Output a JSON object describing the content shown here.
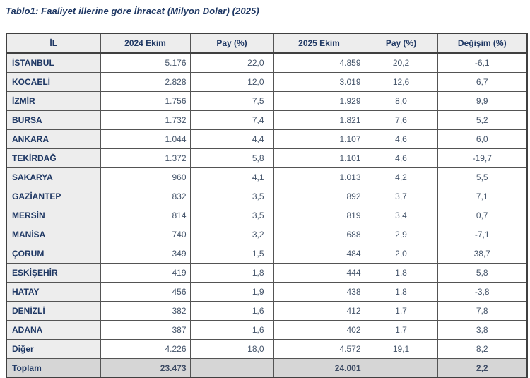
{
  "title": "Tablo1: Faaliyet illerine göre İhracat (Milyon Dolar) (2025)",
  "table": {
    "columns": [
      "İL",
      "2024 Ekim",
      "Pay  (%)",
      "2025 Ekim",
      "Pay  (%)",
      "Değişim (%)"
    ],
    "rows": [
      {
        "il": "İSTANBUL",
        "ekim2024": "5.176",
        "pay2024": "22,0",
        "ekim2025": "4.859",
        "pay2025": "20,2",
        "degisim": "-6,1"
      },
      {
        "il": "KOCAELİ",
        "ekim2024": "2.828",
        "pay2024": "12,0",
        "ekim2025": "3.019",
        "pay2025": "12,6",
        "degisim": "6,7"
      },
      {
        "il": "İZMİR",
        "ekim2024": "1.756",
        "pay2024": "7,5",
        "ekim2025": "1.929",
        "pay2025": "8,0",
        "degisim": "9,9"
      },
      {
        "il": "BURSA",
        "ekim2024": "1.732",
        "pay2024": "7,4",
        "ekim2025": "1.821",
        "pay2025": "7,6",
        "degisim": "5,2"
      },
      {
        "il": "ANKARA",
        "ekim2024": "1.044",
        "pay2024": "4,4",
        "ekim2025": "1.107",
        "pay2025": "4,6",
        "degisim": "6,0"
      },
      {
        "il": "TEKİRDAĞ",
        "ekim2024": "1.372",
        "pay2024": "5,8",
        "ekim2025": "1.101",
        "pay2025": "4,6",
        "degisim": "-19,7"
      },
      {
        "il": "SAKARYA",
        "ekim2024": "960",
        "pay2024": "4,1",
        "ekim2025": "1.013",
        "pay2025": "4,2",
        "degisim": "5,5"
      },
      {
        "il": "GAZİANTEP",
        "ekim2024": "832",
        "pay2024": "3,5",
        "ekim2025": "892",
        "pay2025": "3,7",
        "degisim": "7,1"
      },
      {
        "il": "MERSİN",
        "ekim2024": "814",
        "pay2024": "3,5",
        "ekim2025": "819",
        "pay2025": "3,4",
        "degisim": "0,7"
      },
      {
        "il": "MANİSA",
        "ekim2024": "740",
        "pay2024": "3,2",
        "ekim2025": "688",
        "pay2025": "2,9",
        "degisim": "-7,1"
      },
      {
        "il": "ÇORUM",
        "ekim2024": "349",
        "pay2024": "1,5",
        "ekim2025": "484",
        "pay2025": "2,0",
        "degisim": "38,7"
      },
      {
        "il": "ESKİŞEHİR",
        "ekim2024": "419",
        "pay2024": "1,8",
        "ekim2025": "444",
        "pay2025": "1,8",
        "degisim": "5,8"
      },
      {
        "il": "HATAY",
        "ekim2024": "456",
        "pay2024": "1,9",
        "ekim2025": "438",
        "pay2025": "1,8",
        "degisim": "-3,8"
      },
      {
        "il": "DENİZLİ",
        "ekim2024": "382",
        "pay2024": "1,6",
        "ekim2025": "412",
        "pay2025": "1,7",
        "degisim": "7,8"
      },
      {
        "il": "ADANA",
        "ekim2024": "387",
        "pay2024": "1,6",
        "ekim2025": "402",
        "pay2025": "1,7",
        "degisim": "3,8"
      },
      {
        "il": "Diğer",
        "ekim2024": "4.226",
        "pay2024": "18,0",
        "ekim2025": "4.572",
        "pay2025": "19,1",
        "degisim": "8,2"
      }
    ],
    "total_row": {
      "il": "Toplam",
      "ekim2024": "23.473",
      "pay2024": "",
      "ekim2025": "24.001",
      "pay2025": "",
      "degisim": "2,2"
    }
  },
  "colors": {
    "title_text": "#1f3864",
    "label_text": "#1f3864",
    "number_text": "#44546a",
    "header_bg": "#ededed",
    "label_column_bg": "#ededed",
    "total_row_bg": "#d6d6d6",
    "border": "#545454",
    "outer_border": "#404040"
  }
}
